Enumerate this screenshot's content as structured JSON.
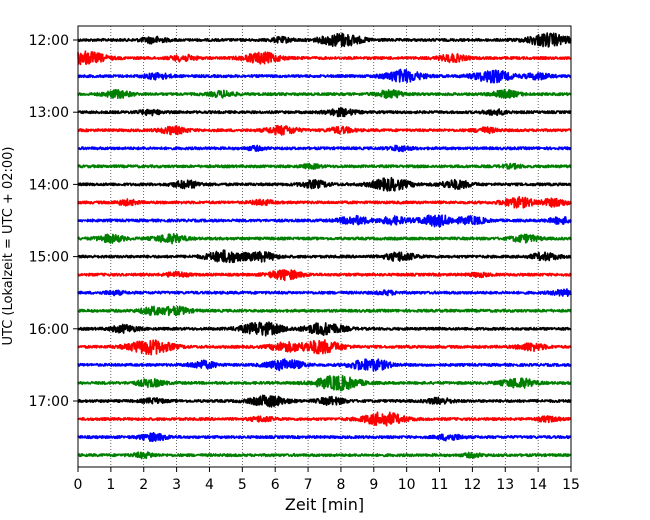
{
  "chart_data": {
    "type": "line",
    "title": "",
    "xlabel": "Zeit  [min]",
    "ylabel": "UTC (Lokalzeit = UTC + 02:00)",
    "xlim": [
      0,
      15
    ],
    "x_ticks": [
      "0",
      "1",
      "2",
      "3",
      "4",
      "5",
      "6",
      "7",
      "8",
      "9",
      "10",
      "11",
      "12",
      "13",
      "14",
      "15"
    ],
    "y_ticks": [
      "12:00",
      "13:00",
      "14:00",
      "15:00",
      "16:00",
      "17:00"
    ],
    "grid": "vertical-dotted",
    "traces_per_hour": 4,
    "trace_minutes": 15,
    "series": [
      {
        "start": "12:00",
        "color": "#000000",
        "events": [
          {
            "t": 2.3,
            "a": 0.25
          },
          {
            "t": 6.2,
            "a": 0.2
          },
          {
            "t": 8.0,
            "a": 0.55
          },
          {
            "t": 14.3,
            "a": 0.55
          }
        ]
      },
      {
        "start": "12:15",
        "color": "#ff0000",
        "events": [
          {
            "t": 0.2,
            "a": 0.55
          },
          {
            "t": 3.2,
            "a": 0.25
          },
          {
            "t": 5.6,
            "a": 0.45
          },
          {
            "t": 11.4,
            "a": 0.3
          }
        ]
      },
      {
        "start": "12:30",
        "color": "#0000ff",
        "events": [
          {
            "t": 2.4,
            "a": 0.25
          },
          {
            "t": 9.9,
            "a": 0.5
          },
          {
            "t": 12.6,
            "a": 0.5
          },
          {
            "t": 14.0,
            "a": 0.25
          }
        ]
      },
      {
        "start": "12:45",
        "color": "#008000",
        "events": [
          {
            "t": 1.2,
            "a": 0.3
          },
          {
            "t": 4.4,
            "a": 0.25
          },
          {
            "t": 9.5,
            "a": 0.3
          },
          {
            "t": 13.0,
            "a": 0.3
          }
        ]
      },
      {
        "start": "13:00",
        "color": "#000000",
        "events": [
          {
            "t": 2.2,
            "a": 0.2
          },
          {
            "t": 8.0,
            "a": 0.3
          },
          {
            "t": 12.7,
            "a": 0.2
          }
        ]
      },
      {
        "start": "13:15",
        "color": "#ff0000",
        "events": [
          {
            "t": 2.9,
            "a": 0.3
          },
          {
            "t": 6.2,
            "a": 0.35
          },
          {
            "t": 8.0,
            "a": 0.25
          },
          {
            "t": 12.4,
            "a": 0.2
          }
        ]
      },
      {
        "start": "13:30",
        "color": "#0000ff",
        "events": [
          {
            "t": 5.4,
            "a": 0.15
          },
          {
            "t": 9.8,
            "a": 0.2
          }
        ]
      },
      {
        "start": "13:45",
        "color": "#008000",
        "events": [
          {
            "t": 7.1,
            "a": 0.15
          },
          {
            "t": 13.2,
            "a": 0.15
          }
        ]
      },
      {
        "start": "14:00",
        "color": "#000000",
        "events": [
          {
            "t": 3.3,
            "a": 0.3
          },
          {
            "t": 7.2,
            "a": 0.3
          },
          {
            "t": 9.5,
            "a": 0.5
          },
          {
            "t": 11.5,
            "a": 0.35
          }
        ]
      },
      {
        "start": "14:15",
        "color": "#ff0000",
        "events": [
          {
            "t": 1.5,
            "a": 0.2
          },
          {
            "t": 5.6,
            "a": 0.2
          },
          {
            "t": 13.4,
            "a": 0.4
          },
          {
            "t": 14.5,
            "a": 0.3
          }
        ]
      },
      {
        "start": "14:30",
        "color": "#0000ff",
        "events": [
          {
            "t": 8.4,
            "a": 0.35
          },
          {
            "t": 9.6,
            "a": 0.3
          },
          {
            "t": 10.9,
            "a": 0.45
          },
          {
            "t": 12.0,
            "a": 0.3
          },
          {
            "t": 14.7,
            "a": 0.25
          }
        ]
      },
      {
        "start": "14:45",
        "color": "#008000",
        "events": [
          {
            "t": 1.0,
            "a": 0.3
          },
          {
            "t": 2.8,
            "a": 0.35
          },
          {
            "t": 13.6,
            "a": 0.3
          }
        ]
      },
      {
        "start": "15:00",
        "color": "#000000",
        "events": [
          {
            "t": 4.5,
            "a": 0.5
          },
          {
            "t": 5.6,
            "a": 0.35
          },
          {
            "t": 9.8,
            "a": 0.35
          },
          {
            "t": 14.2,
            "a": 0.3
          }
        ]
      },
      {
        "start": "15:15",
        "color": "#ff0000",
        "events": [
          {
            "t": 3.0,
            "a": 0.2
          },
          {
            "t": 6.3,
            "a": 0.4
          },
          {
            "t": 12.2,
            "a": 0.15
          }
        ]
      },
      {
        "start": "15:30",
        "color": "#0000ff",
        "events": [
          {
            "t": 1.1,
            "a": 0.15
          },
          {
            "t": 9.4,
            "a": 0.15
          },
          {
            "t": 14.8,
            "a": 0.25
          }
        ]
      },
      {
        "start": "15:45",
        "color": "#008000",
        "events": [
          {
            "t": 2.3,
            "a": 0.3
          },
          {
            "t": 3.0,
            "a": 0.3
          }
        ]
      },
      {
        "start": "16:00",
        "color": "#000000",
        "events": [
          {
            "t": 1.4,
            "a": 0.3
          },
          {
            "t": 5.6,
            "a": 0.55
          },
          {
            "t": 7.5,
            "a": 0.5
          }
        ]
      },
      {
        "start": "16:15",
        "color": "#ff0000",
        "events": [
          {
            "t": 2.2,
            "a": 0.6
          },
          {
            "t": 6.3,
            "a": 0.35
          },
          {
            "t": 7.4,
            "a": 0.55
          },
          {
            "t": 13.8,
            "a": 0.3
          }
        ]
      },
      {
        "start": "16:30",
        "color": "#0000ff",
        "events": [
          {
            "t": 3.8,
            "a": 0.3
          },
          {
            "t": 6.3,
            "a": 0.45
          },
          {
            "t": 8.6,
            "a": 0.3
          },
          {
            "t": 9.1,
            "a": 0.35
          }
        ]
      },
      {
        "start": "16:45",
        "color": "#008000",
        "events": [
          {
            "t": 2.2,
            "a": 0.3
          },
          {
            "t": 7.9,
            "a": 0.6
          },
          {
            "t": 13.4,
            "a": 0.4
          }
        ]
      },
      {
        "start": "17:00",
        "color": "#000000",
        "events": [
          {
            "t": 2.3,
            "a": 0.2
          },
          {
            "t": 5.8,
            "a": 0.45
          },
          {
            "t": 7.7,
            "a": 0.3
          },
          {
            "t": 11.0,
            "a": 0.25
          }
        ]
      },
      {
        "start": "17:15",
        "color": "#ff0000",
        "events": [
          {
            "t": 5.6,
            "a": 0.2
          },
          {
            "t": 9.3,
            "a": 0.55
          },
          {
            "t": 14.3,
            "a": 0.2
          }
        ]
      },
      {
        "start": "17:30",
        "color": "#0000ff",
        "events": [
          {
            "t": 2.3,
            "a": 0.3
          },
          {
            "t": 11.3,
            "a": 0.25
          }
        ]
      },
      {
        "start": "17:45",
        "color": "#008000",
        "events": [
          {
            "t": 2.0,
            "a": 0.2
          },
          {
            "t": 12.0,
            "a": 0.15
          }
        ]
      }
    ]
  }
}
